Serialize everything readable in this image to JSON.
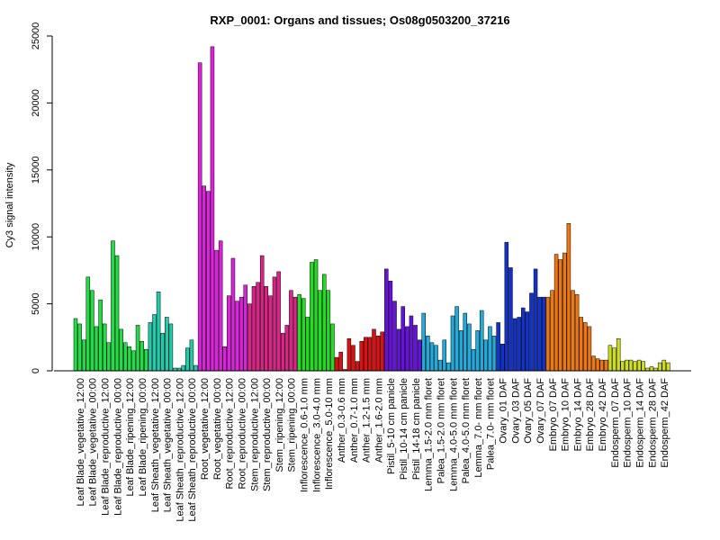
{
  "chart_data": {
    "type": "bar",
    "title": "RXP_0001: Organs and tissues; Os08g0503200_37216",
    "xlabel": "",
    "ylabel": "Cy3 signal intensity",
    "ylim": [
      0,
      25000
    ],
    "yticks": [
      0,
      5000,
      10000,
      15000,
      20000,
      25000
    ],
    "grid": false,
    "legend": "none",
    "groups": [
      {
        "label": "Leaf Blade_vegetative_12:00",
        "color": "#22dd44",
        "values": [
          3900,
          3500,
          2300
        ]
      },
      {
        "label": "Leaf Blade_vegetative_00:00",
        "color": "#22dd44",
        "values": [
          7000,
          6000,
          3300
        ]
      },
      {
        "label": "Leaf Blade_reproductive_12:00",
        "color": "#22dd44",
        "values": [
          5300,
          3500,
          2100
        ]
      },
      {
        "label": "Leaf Blade_reproductive_00:00",
        "color": "#22dd44",
        "values": [
          9700,
          8600,
          3100
        ]
      },
      {
        "label": "Leaf Blade_ripening_12:00",
        "color": "#22dd44",
        "values": [
          2100,
          1800,
          1500
        ]
      },
      {
        "label": "Leaf Blade_ripening_00:00",
        "color": "#22dd44",
        "values": [
          3400,
          2200,
          1600
        ]
      },
      {
        "label": "Leaf Sheath_vegetative_12:00",
        "color": "#22ccaa",
        "values": [
          3600,
          4200,
          5900
        ]
      },
      {
        "label": "Leaf Sheath_vegetative_00:00",
        "color": "#22ccaa",
        "values": [
          2800,
          4000,
          3500
        ]
      },
      {
        "label": "Leaf Sheath_reproductive_12:00",
        "color": "#22ccaa",
        "values": [
          200,
          200,
          400
        ]
      },
      {
        "label": "Leaf Sheath_reproductive_00:00",
        "color": "#22ccaa",
        "values": [
          1700,
          2300,
          400
        ]
      },
      {
        "label": "Root_vegetative_12:00",
        "color": "#dd22dd",
        "values": [
          23000,
          13800,
          13400
        ]
      },
      {
        "label": "Root_vegetative_00:00",
        "color": "#dd22dd",
        "values": [
          24200,
          9000,
          9700
        ]
      },
      {
        "label": "Root_reproductive_12:00",
        "color": "#dd22dd",
        "values": [
          1800,
          5600,
          8400
        ]
      },
      {
        "label": "Root_reproductive_00:00",
        "color": "#dd22dd",
        "values": [
          5200,
          5500,
          6400
        ]
      },
      {
        "label": "Stem_reproductive_12:00",
        "color": "#dd2288",
        "values": [
          5000,
          6300,
          6600
        ]
      },
      {
        "label": "Stem_reproductive_00:00",
        "color": "#dd2288",
        "values": [
          8600,
          6300,
          5600
        ]
      },
      {
        "label": "Stem_ripening_12:00",
        "color": "#dd2288",
        "values": [
          7000,
          7400,
          2800
        ]
      },
      {
        "label": "Stem_ripening_00:00",
        "color": "#dd2288",
        "values": [
          3400,
          6000,
          5500
        ]
      },
      {
        "label": "Inflorescence_0.6-1.0 mm",
        "color": "#22dd22",
        "values": [
          5700,
          5400,
          4000
        ]
      },
      {
        "label": "Inflorescence_3.0-4.0 mm",
        "color": "#22dd22",
        "values": [
          8100,
          8300,
          6000
        ]
      },
      {
        "label": "Inflorescence_5.0-10 mm",
        "color": "#22dd22",
        "values": [
          7200,
          6000,
          3500
        ]
      },
      {
        "label": "Anther_0.3-0.6 mm",
        "color": "#dd1111",
        "values": [
          1000,
          1400,
          100
        ]
      },
      {
        "label": "Anther_0.7-1.0 mm",
        "color": "#dd1111",
        "values": [
          2400,
          1900,
          700
        ]
      },
      {
        "label": "Anther_1.2-1.5 mm",
        "color": "#dd1111",
        "values": [
          2200,
          2500,
          2500
        ]
      },
      {
        "label": "Anther_1.6-2.0 mm",
        "color": "#dd1111",
        "values": [
          3100,
          2600,
          2900
        ]
      },
      {
        "label": "Pistil_5-10 cm panicle",
        "color": "#6611dd",
        "values": [
          7600,
          6700,
          5200
        ]
      },
      {
        "label": "Pistil_10-14 cm panicle",
        "color": "#6611dd",
        "values": [
          3100,
          4800,
          3300
        ]
      },
      {
        "label": "Pistil_14-18 cm panicle",
        "color": "#6611dd",
        "values": [
          4100,
          3400,
          2300
        ]
      },
      {
        "label": "Lemma_1.5-2.0 mm floret",
        "color": "#22aadd",
        "values": [
          4300,
          2600,
          2100
        ]
      },
      {
        "label": "Palea_1.5-2.0 mm floret",
        "color": "#22aadd",
        "values": [
          1900,
          800,
          2300
        ]
      },
      {
        "label": "Lemma_4.0-5.0 mm floret",
        "color": "#22aadd",
        "values": [
          600,
          4100,
          4800
        ]
      },
      {
        "label": "Palea_4.0-5.0 mm floret",
        "color": "#22aadd",
        "values": [
          3000,
          4300,
          3500
        ]
      },
      {
        "label": "Lemma_7.0- mm floret",
        "color": "#22aadd",
        "values": [
          1600,
          3000,
          4500
        ]
      },
      {
        "label": "Palea_7.0- mm floret",
        "color": "#22aadd",
        "values": [
          2300,
          3300,
          2600
        ]
      },
      {
        "label": "Ovary_01 DAF",
        "color": "#1133cc",
        "values": [
          3600,
          2000,
          9600
        ]
      },
      {
        "label": "Ovary_03 DAF",
        "color": "#1133cc",
        "values": [
          7700,
          3900,
          4000
        ]
      },
      {
        "label": "Ovary_05 DAF",
        "color": "#1133cc",
        "values": [
          4700,
          4400,
          5800
        ]
      },
      {
        "label": "Ovary_07 DAF",
        "color": "#1133cc",
        "values": [
          7600,
          5500,
          5500
        ]
      },
      {
        "label": "Embryo_07 DAF",
        "color": "#ee7711",
        "values": [
          5500,
          6000,
          8700
        ]
      },
      {
        "label": "Embryo_10 DAF",
        "color": "#ee7711",
        "values": [
          8300,
          8800,
          11000
        ]
      },
      {
        "label": "Embryo_14 DAF",
        "color": "#ee7711",
        "values": [
          6000,
          5700,
          4000
        ]
      },
      {
        "label": "Embryo_28 DAF",
        "color": "#ee7711",
        "values": [
          3600,
          3300,
          1100
        ]
      },
      {
        "label": "Embryo_42 DAF",
        "color": "#ee7711",
        "values": [
          900,
          800,
          800
        ]
      },
      {
        "label": "Endosperm_07 DAF",
        "color": "#ccdd22",
        "values": [
          1900,
          1700,
          2400
        ]
      },
      {
        "label": "Endosperm_10 DAF",
        "color": "#ccdd22",
        "values": [
          700,
          800,
          800
        ]
      },
      {
        "label": "Endosperm_14 DAF",
        "color": "#ccdd22",
        "values": [
          700,
          800,
          700
        ]
      },
      {
        "label": "Endosperm_28 DAF",
        "color": "#ccdd22",
        "values": [
          200,
          300,
          200
        ]
      },
      {
        "label": "Endosperm_42 DAF",
        "color": "#ccdd22",
        "values": [
          600,
          800,
          600
        ]
      }
    ]
  }
}
